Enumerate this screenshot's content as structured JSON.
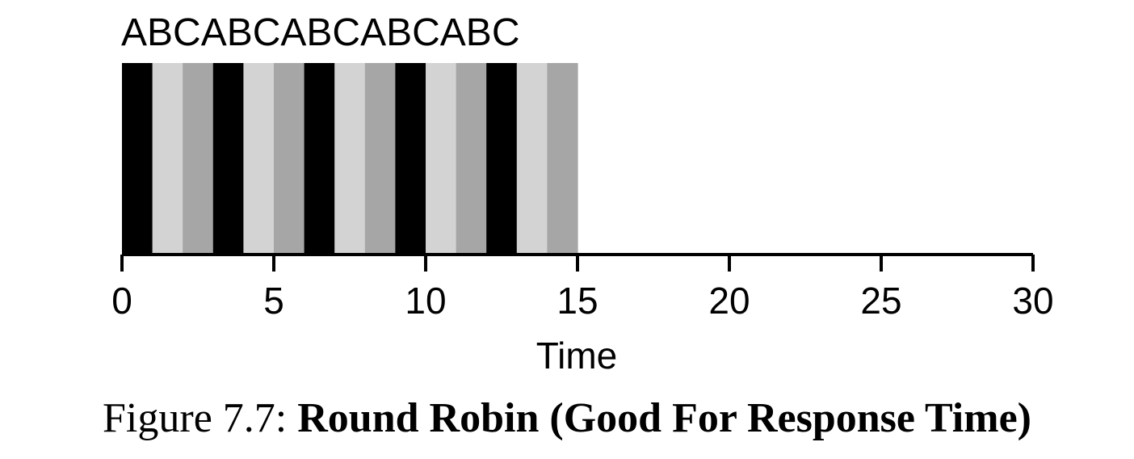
{
  "chart_data": {
    "type": "bar",
    "subtype": "timeline",
    "xlabel": "Time",
    "xlim": [
      0,
      30
    ],
    "xticks": [
      0,
      5,
      10,
      15,
      20,
      25,
      30
    ],
    "segment_sequence": "ABCABCABCABCABC",
    "segments": [
      {
        "job": "A",
        "start": 0,
        "end": 1
      },
      {
        "job": "B",
        "start": 1,
        "end": 2
      },
      {
        "job": "C",
        "start": 2,
        "end": 3
      },
      {
        "job": "A",
        "start": 3,
        "end": 4
      },
      {
        "job": "B",
        "start": 4,
        "end": 5
      },
      {
        "job": "C",
        "start": 5,
        "end": 6
      },
      {
        "job": "A",
        "start": 6,
        "end": 7
      },
      {
        "job": "B",
        "start": 7,
        "end": 8
      },
      {
        "job": "C",
        "start": 8,
        "end": 9
      },
      {
        "job": "A",
        "start": 9,
        "end": 10
      },
      {
        "job": "B",
        "start": 10,
        "end": 11
      },
      {
        "job": "C",
        "start": 11,
        "end": 12
      },
      {
        "job": "A",
        "start": 12,
        "end": 13
      },
      {
        "job": "B",
        "start": 13,
        "end": 14
      },
      {
        "job": "C",
        "start": 14,
        "end": 15
      }
    ],
    "job_colors": {
      "A": "#000000",
      "B": "#d3d3d3",
      "C": "#a6a6a6"
    },
    "grid": false,
    "legend": "none"
  },
  "caption": {
    "prefix": "Figure 7.7: ",
    "title": "Round Robin (Good For Response Time)"
  }
}
